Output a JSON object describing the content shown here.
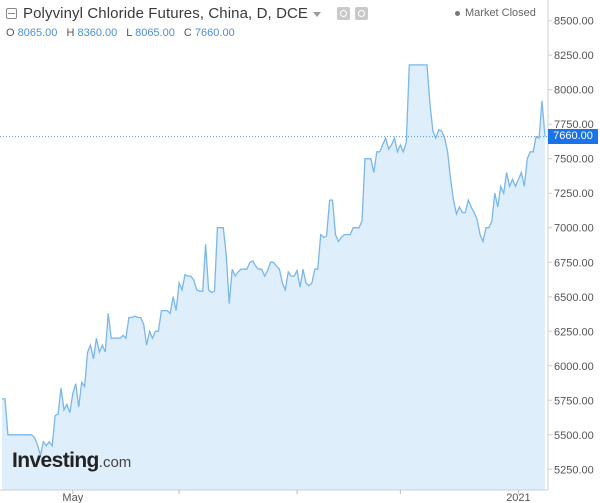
{
  "header": {
    "title": "Polyvinyl Chloride Futures, China, D, DCE",
    "market_status": "Market Closed"
  },
  "ohlc": {
    "o_label": "O",
    "o_value": "8065.00",
    "h_label": "H",
    "h_value": "8360.00",
    "l_label": "L",
    "l_value": "8065.00",
    "c_label": "C",
    "c_value": "7660.00"
  },
  "logo": {
    "main": "Investing",
    "suffix": ".com"
  },
  "last_price_label": "7660.00",
  "colors": {
    "line": "#7ab7ea",
    "fill": "#deeefb",
    "price_tag": "#1a73e8",
    "price_line": "#5b9bd5"
  },
  "chart_data": {
    "type": "area",
    "y_ticks": [
      "8500.00",
      "8250.00",
      "8000.00",
      "7750.00",
      "7500.00",
      "7250.00",
      "7000.00",
      "6750.00",
      "6500.00",
      "6250.00",
      "6000.00",
      "5750.00",
      "5500.00",
      "5250.00"
    ],
    "y_tick_values": [
      8500,
      8250,
      8000,
      7750,
      7500,
      7250,
      7000,
      6750,
      6500,
      6250,
      6000,
      5750,
      5500,
      5250
    ],
    "x_tick_labels": [
      {
        "label": "May",
        "index": 24
      },
      {
        "label": "2021",
        "index": 175
      }
    ],
    "x_tick_marks": [
      24,
      60,
      100,
      135,
      175
    ],
    "ylim": [
      5100,
      8650
    ],
    "last_price": 7660,
    "y": [
      5760,
      5760,
      5500,
      5500,
      5500,
      5500,
      5500,
      5500,
      5500,
      5500,
      5500,
      5480,
      5430,
      5350,
      5450,
      5420,
      5450,
      5420,
      5640,
      5650,
      5840,
      5680,
      5720,
      5660,
      5800,
      5870,
      5700,
      5880,
      5850,
      6100,
      6150,
      6050,
      6200,
      6100,
      6150,
      6100,
      6380,
      6200,
      6200,
      6200,
      6200,
      6220,
      6200,
      6350,
      6350,
      6360,
      6350,
      6350,
      6300,
      6150,
      6250,
      6200,
      6250,
      6250,
      6400,
      6400,
      6400,
      6380,
      6500,
      6400,
      6600,
      6550,
      6660,
      6650,
      6650,
      6620,
      6550,
      6540,
      6540,
      6880,
      6550,
      6530,
      6540,
      7000,
      7000,
      7000,
      6800,
      6450,
      6700,
      6650,
      6680,
      6700,
      6700,
      6700,
      6750,
      6760,
      6720,
      6700,
      6700,
      6650,
      6690,
      6750,
      6750,
      6720,
      6700,
      6600,
      6550,
      6680,
      6650,
      6650,
      6690,
      6570,
      6700,
      6600,
      6580,
      6600,
      6700,
      6700,
      6950,
      6930,
      6940,
      7200,
      7200,
      6950,
      6900,
      6930,
      6950,
      6950,
      6950,
      7000,
      7000,
      7000,
      7050,
      7500,
      7500,
      7500,
      7400,
      7550,
      7550,
      7600,
      7650,
      7570,
      7600,
      7650,
      7550,
      7600,
      7550,
      7620,
      8180,
      8180,
      8180,
      8180,
      8180,
      8180,
      8180,
      7900,
      7700,
      7650,
      7710,
      7700,
      7650,
      7550,
      7350,
      7200,
      7100,
      7150,
      7110,
      7110,
      7200,
      7150,
      7110,
      7060,
      6950,
      6900,
      7000,
      7000,
      7050,
      7250,
      7150,
      7300,
      7250,
      7400,
      7300,
      7350,
      7300,
      7350,
      7400,
      7300,
      7500,
      7550,
      7550,
      7660,
      7650,
      7920,
      7660
    ]
  }
}
